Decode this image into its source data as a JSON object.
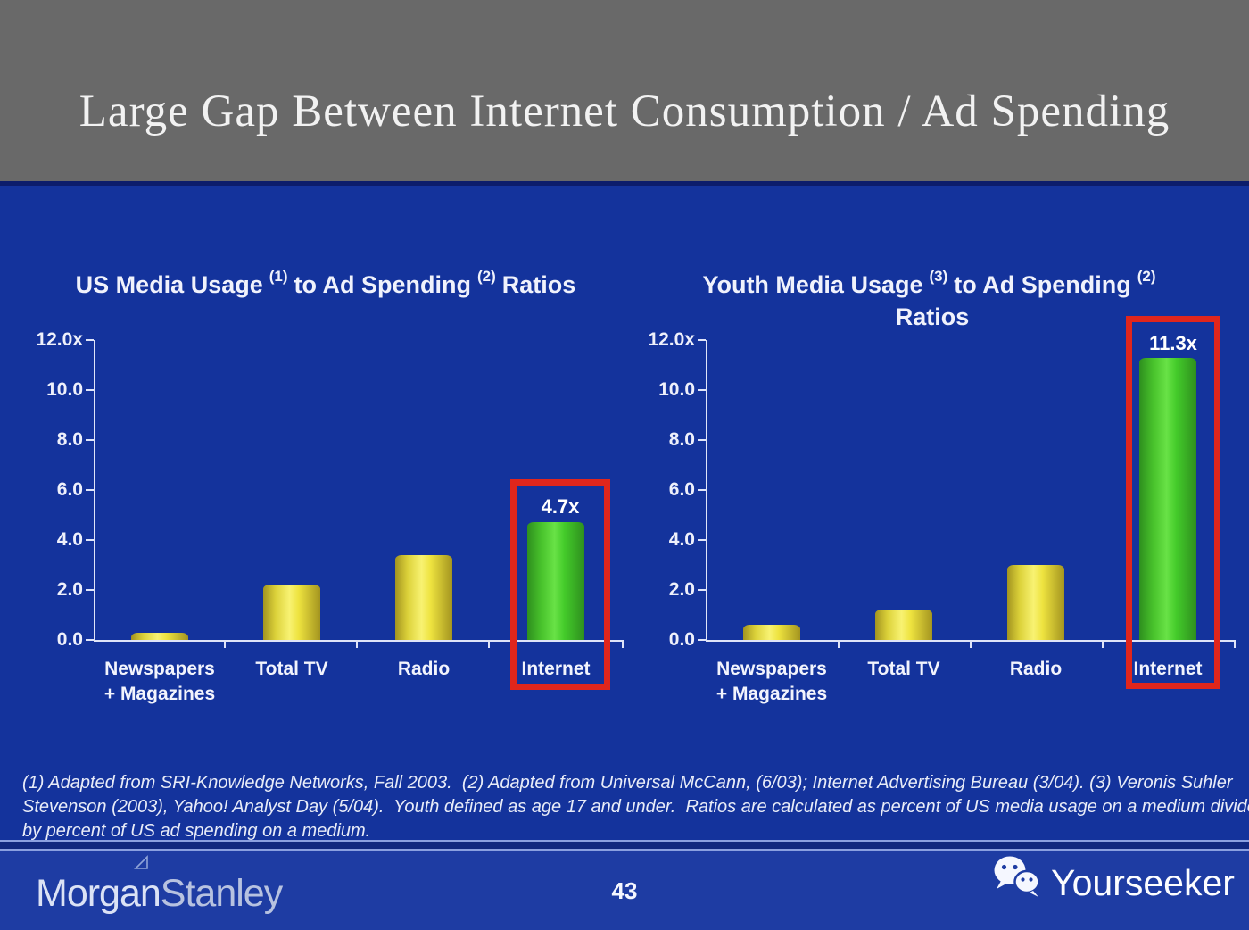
{
  "slide": {
    "title": "Large Gap Between Internet Consumption / Ad Spending",
    "page_number": "43"
  },
  "footnote": {
    "line1": "(1) Adapted from SRI-Knowledge Networks, Fall 2003.  (2) Adapted from Universal McCann, (6/03); Internet Advertising Bureau (3/04). (3) Veronis Suhler",
    "line2": "Stevenson (2003), Yahoo! Analyst Day (5/04).  Youth defined as age 17 and under.  Ratios are calculated as percent of US media usage on a medium divided",
    "line3": "by percent of US ad spending on a medium."
  },
  "footer": {
    "brand_part1": "Morgan",
    "brand_part2": "Stanley",
    "watermark": "Yourseeker"
  },
  "colors": {
    "header_gray": "#696969",
    "slide_blue": "#14339c",
    "footer_blue": "#1e3ca3",
    "bar_yellow": "#ece23f",
    "bar_green": "#4ccc2e",
    "highlight_red": "#e0261c",
    "axis_white": "#dfe4f8"
  },
  "chart_data": [
    {
      "type": "bar",
      "title": "US Media Usage (1) to Ad Spending (2) Ratios",
      "title_parts": {
        "t1": "US Media Usage",
        "s1": "(1)",
        "t2": "to Ad Spending",
        "s2": "(2)",
        "t3": "Ratios"
      },
      "categories": [
        "Newspapers + Magazines",
        "Total TV",
        "Radio",
        "Internet"
      ],
      "category_labels": [
        {
          "line1": "Newspapers",
          "line2": "+ Magazines"
        },
        {
          "line1": "Total TV",
          "line2": ""
        },
        {
          "line1": "Radio",
          "line2": ""
        },
        {
          "line1": "Internet",
          "line2": ""
        }
      ],
      "values": [
        0.3,
        2.2,
        3.4,
        4.7
      ],
      "bar_colors": [
        "yellow",
        "yellow",
        "yellow",
        "green"
      ],
      "highlight_index": 3,
      "highlight_label": "4.7x",
      "yticks": [
        "12.0x",
        "10.0",
        "8.0",
        "6.0",
        "4.0",
        "2.0",
        "0.0"
      ],
      "ylim": [
        0,
        12
      ],
      "grid": false,
      "legend": false
    },
    {
      "type": "bar",
      "title": "Youth Media Usage (3) to Ad Spending (2) Ratios",
      "title_parts": {
        "t1": "Youth Media Usage",
        "s1": "(3)",
        "t2": "to Ad Spending",
        "s2": "(2)",
        "t3": "Ratios"
      },
      "categories": [
        "Newspapers + Magazines",
        "Total TV",
        "Radio",
        "Internet"
      ],
      "category_labels": [
        {
          "line1": "Newspapers",
          "line2": "+ Magazines"
        },
        {
          "line1": "Total TV",
          "line2": ""
        },
        {
          "line1": "Radio",
          "line2": ""
        },
        {
          "line1": "Internet",
          "line2": ""
        }
      ],
      "values": [
        0.6,
        1.2,
        3.0,
        11.3
      ],
      "bar_colors": [
        "yellow",
        "yellow",
        "yellow",
        "green"
      ],
      "highlight_index": 3,
      "highlight_label": "11.3x",
      "yticks": [
        "12.0x",
        "10.0",
        "8.0",
        "6.0",
        "4.0",
        "2.0",
        "0.0"
      ],
      "ylim": [
        0,
        12
      ],
      "grid": false,
      "legend": false
    }
  ]
}
